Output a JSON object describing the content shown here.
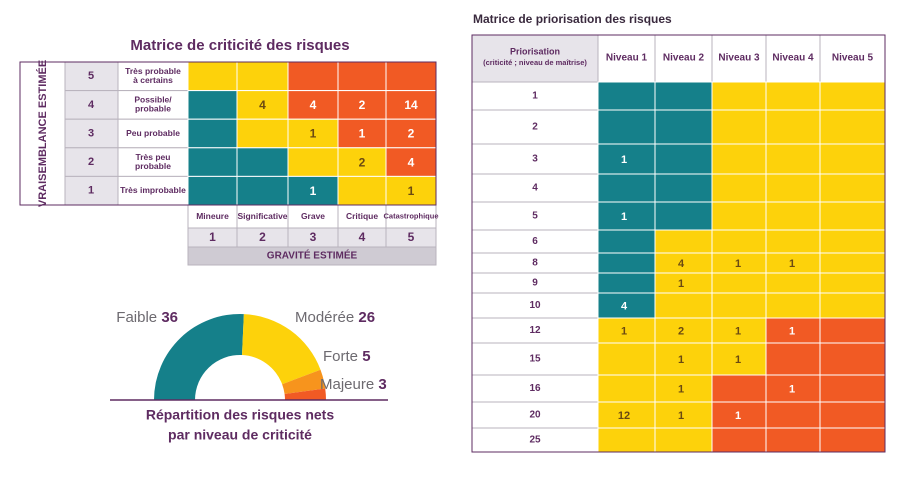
{
  "palette": {
    "teal": "#15808a",
    "yellow": "#fdd20b",
    "orange": "#f15a24",
    "light-orange": "#f7941d"
  },
  "criticality_matrix": {
    "title": "Matrice de criticité des risques",
    "y_axis_label": "VRAISEMBLANCE ESTIMÉE",
    "rows": [
      {
        "level": 5,
        "label": [
          "Très probable",
          "à certains"
        ],
        "colors": [
          "yellow",
          "yellow",
          "orange",
          "orange",
          "orange"
        ],
        "counts": [
          null,
          null,
          null,
          null,
          null
        ]
      },
      {
        "level": 4,
        "label": [
          "Possible/",
          "probable"
        ],
        "colors": [
          "teal",
          "yellow",
          "orange",
          "orange",
          "orange"
        ],
        "counts": [
          null,
          4,
          4,
          2,
          14
        ]
      },
      {
        "level": 3,
        "label": [
          "Peu probable"
        ],
        "colors": [
          "teal",
          "yellow",
          "yellow",
          "orange",
          "orange"
        ],
        "counts": [
          null,
          null,
          1,
          1,
          2
        ]
      },
      {
        "level": 2,
        "label": [
          "Très peu",
          "probable"
        ],
        "colors": [
          "teal",
          "teal",
          "yellow",
          "yellow",
          "orange"
        ],
        "counts": [
          null,
          null,
          null,
          2,
          4
        ]
      },
      {
        "level": 1,
        "label": [
          "Très improbable"
        ],
        "colors": [
          "teal",
          "teal",
          "teal",
          "yellow",
          "yellow"
        ],
        "counts": [
          null,
          null,
          1,
          null,
          1
        ]
      }
    ],
    "columns": [
      {
        "label": "Mineure",
        "level": 1
      },
      {
        "label": "Significative",
        "level": 2
      },
      {
        "label": "Grave",
        "level": 3
      },
      {
        "label": "Critique",
        "level": 4
      },
      {
        "label": "Catastrophique",
        "level": 5
      }
    ],
    "x_axis_label": "GRAVITÉ ESTIMÉE"
  },
  "chart_data": {
    "type": "half-donut",
    "caption": [
      "Répartition des risques nets",
      "par niveau de criticité"
    ],
    "categories": [
      "Faible",
      "Modérée",
      "Forte",
      "Majeure"
    ],
    "values": [
      36,
      26,
      5,
      3
    ],
    "colors": [
      "#15808a",
      "#fdd20b",
      "#f7941d",
      "#f15a24"
    ]
  },
  "priority_matrix": {
    "title": "Matrice de priorisation des risques",
    "header": [
      "Priorisation",
      "(criticité ; niveau de maîtrise)"
    ],
    "columns": [
      "Niveau 1",
      "Niveau 2",
      "Niveau 3",
      "Niveau 4",
      "Niveau 5"
    ],
    "rows": [
      {
        "label": 1,
        "colors": [
          "teal",
          "teal",
          "yellow",
          "yellow",
          "yellow"
        ],
        "counts": [
          null,
          null,
          null,
          null,
          null
        ]
      },
      {
        "label": 2,
        "colors": [
          "teal",
          "teal",
          "yellow",
          "yellow",
          "yellow"
        ],
        "counts": [
          null,
          null,
          null,
          null,
          null
        ]
      },
      {
        "label": 3,
        "colors": [
          "teal",
          "teal",
          "yellow",
          "yellow",
          "yellow"
        ],
        "counts": [
          1,
          null,
          null,
          null,
          null
        ]
      },
      {
        "label": 4,
        "colors": [
          "teal",
          "teal",
          "yellow",
          "yellow",
          "yellow"
        ],
        "counts": [
          null,
          null,
          null,
          null,
          null
        ]
      },
      {
        "label": 5,
        "colors": [
          "teal",
          "teal",
          "yellow",
          "yellow",
          "yellow"
        ],
        "counts": [
          1,
          null,
          null,
          null,
          null
        ]
      },
      {
        "label": 6,
        "colors": [
          "teal",
          "yellow",
          "yellow",
          "yellow",
          "yellow"
        ],
        "counts": [
          null,
          null,
          null,
          null,
          null
        ]
      },
      {
        "label": 8,
        "colors": [
          "teal",
          "yellow",
          "yellow",
          "yellow",
          "yellow"
        ],
        "counts": [
          null,
          4,
          1,
          1,
          null
        ]
      },
      {
        "label": 9,
        "colors": [
          "teal",
          "yellow",
          "yellow",
          "yellow",
          "yellow"
        ],
        "counts": [
          null,
          1,
          null,
          null,
          null
        ]
      },
      {
        "label": 10,
        "colors": [
          "teal",
          "yellow",
          "yellow",
          "yellow",
          "yellow"
        ],
        "counts": [
          4,
          null,
          null,
          null,
          null
        ]
      },
      {
        "label": 12,
        "colors": [
          "yellow",
          "yellow",
          "yellow",
          "orange",
          "orange"
        ],
        "counts": [
          1,
          2,
          1,
          1,
          null
        ]
      },
      {
        "label": 15,
        "colors": [
          "yellow",
          "yellow",
          "yellow",
          "orange",
          "orange"
        ],
        "counts": [
          null,
          1,
          1,
          null,
          null
        ]
      },
      {
        "label": 16,
        "colors": [
          "yellow",
          "yellow",
          "orange",
          "orange",
          "orange"
        ],
        "counts": [
          null,
          1,
          null,
          1,
          null
        ]
      },
      {
        "label": 20,
        "colors": [
          "yellow",
          "yellow",
          "orange",
          "orange",
          "orange"
        ],
        "counts": [
          12,
          1,
          1,
          null,
          null
        ]
      },
      {
        "label": 25,
        "colors": [
          "yellow",
          "yellow",
          "orange",
          "orange",
          "orange"
        ],
        "counts": [
          null,
          null,
          null,
          null,
          null
        ]
      }
    ]
  }
}
